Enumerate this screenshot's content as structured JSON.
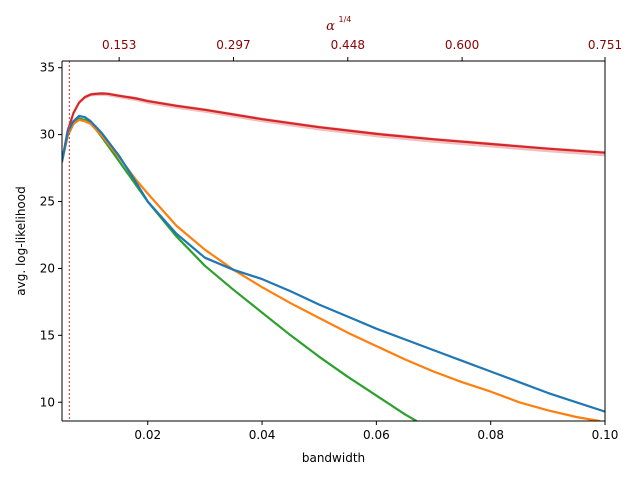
{
  "chart_data": {
    "type": "line",
    "xlabel": "bandwidth",
    "ylabel": "avg. log-likelihood",
    "top_axis": {
      "label": "α^(1/4)",
      "ticks": [
        {
          "x": 0.015,
          "label": "0.153"
        },
        {
          "x": 0.035,
          "label": "0.297"
        },
        {
          "x": 0.055,
          "label": "0.448"
        },
        {
          "x": 0.075,
          "label": "0.600"
        },
        {
          "x": 0.1,
          "label": "0.751"
        }
      ],
      "color": "#8b0000"
    },
    "xlim": [
      0.005,
      0.1
    ],
    "ylim": [
      8.6,
      35.5
    ],
    "xticks": [
      0.02,
      0.04,
      0.06,
      0.08,
      0.1
    ],
    "xtick_labels": [
      "0.02",
      "0.04",
      "0.06",
      "0.08",
      "0.10"
    ],
    "yticks": [
      10,
      15,
      20,
      25,
      30,
      35
    ],
    "ytick_labels": [
      "10",
      "15",
      "20",
      "25",
      "30",
      "35"
    ],
    "vline": {
      "x": 0.0063,
      "color": "#e8474a",
      "style": "dotted"
    },
    "series": [
      {
        "color": "#d62728",
        "band": true,
        "x": [
          0.005,
          0.006,
          0.007,
          0.008,
          0.009,
          0.01,
          0.011,
          0.012,
          0.013,
          0.015,
          0.018,
          0.02,
          0.025,
          0.03,
          0.04,
          0.05,
          0.06,
          0.07,
          0.08,
          0.09,
          0.1
        ],
        "y": [
          28.0,
          30.3,
          31.6,
          32.4,
          32.8,
          33.0,
          33.05,
          33.07,
          33.05,
          32.9,
          32.7,
          32.5,
          32.15,
          31.85,
          31.15,
          30.55,
          30.05,
          29.65,
          29.3,
          28.95,
          28.65
        ]
      },
      {
        "color": "#2ca02c",
        "x": [
          0.005,
          0.006,
          0.007,
          0.008,
          0.009,
          0.01,
          0.012,
          0.015,
          0.018,
          0.02,
          0.025,
          0.03,
          0.035,
          0.04,
          0.045,
          0.05,
          0.055,
          0.06,
          0.065,
          0.067
        ],
        "y": [
          28.0,
          29.9,
          30.8,
          31.2,
          31.1,
          30.9,
          29.8,
          28.0,
          26.2,
          25.0,
          22.4,
          20.2,
          18.4,
          16.7,
          15.0,
          13.4,
          11.9,
          10.5,
          9.1,
          8.6
        ]
      },
      {
        "color": "#ff7f0e",
        "x": [
          0.005,
          0.006,
          0.007,
          0.008,
          0.009,
          0.01,
          0.012,
          0.015,
          0.018,
          0.02,
          0.025,
          0.03,
          0.035,
          0.04,
          0.045,
          0.05,
          0.055,
          0.06,
          0.065,
          0.07,
          0.075,
          0.08,
          0.085,
          0.09,
          0.095,
          0.099
        ],
        "y": [
          28.0,
          30.0,
          30.8,
          31.1,
          31.0,
          30.8,
          29.9,
          28.3,
          26.6,
          25.6,
          23.2,
          21.4,
          19.9,
          18.6,
          17.4,
          16.3,
          15.2,
          14.2,
          13.2,
          12.3,
          11.5,
          10.8,
          10.0,
          9.4,
          8.9,
          8.6
        ]
      },
      {
        "color": "#1f77b4",
        "x": [
          0.005,
          0.006,
          0.007,
          0.008,
          0.009,
          0.01,
          0.012,
          0.015,
          0.018,
          0.02,
          0.025,
          0.03,
          0.035,
          0.04,
          0.045,
          0.05,
          0.055,
          0.06,
          0.065,
          0.07,
          0.075,
          0.08,
          0.085,
          0.09,
          0.095,
          0.1
        ],
        "y": [
          28.0,
          30.2,
          31.0,
          31.4,
          31.3,
          31.0,
          30.1,
          28.4,
          26.4,
          25.0,
          22.6,
          20.8,
          19.9,
          19.2,
          18.3,
          17.3,
          16.4,
          15.5,
          14.7,
          13.9,
          13.1,
          12.3,
          11.5,
          10.7,
          10.0,
          9.3
        ]
      }
    ]
  }
}
